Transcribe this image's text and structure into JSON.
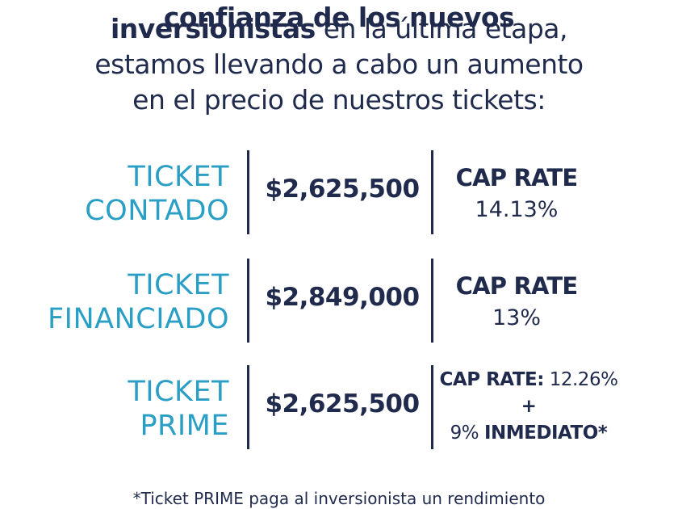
{
  "intro": {
    "line0_cut": "confianza de los nuevos",
    "line1_bold": "inversionistas",
    "line1_rest": " en la última etapa,",
    "line2": "estamos llevando a cabo un aumento",
    "line3": "en el precio de nuestros tickets:"
  },
  "tickets": [
    {
      "label_line1": "TICKET",
      "label_line2": "CONTADO",
      "price": "$2,625,500",
      "cap_title": "CAP RATE",
      "cap_value": "14.13%"
    },
    {
      "label_line1": "TICKET",
      "label_line2": "FINANCIADO",
      "price": "$2,849,000",
      "cap_title": "CAP RATE",
      "cap_value": "13%"
    },
    {
      "label_line1": "TICKET",
      "label_line2": "PRIME",
      "price": "$2,625,500",
      "cap_title": "CAP RATE:",
      "cap_value": " 12.26%",
      "cap_plus": "+",
      "cap_extra_pct": "9% ",
      "cap_extra_bold": "INMEDIATO*"
    }
  ],
  "footnote": "*Ticket PRIME paga al inversionista un rendimiento",
  "colors": {
    "navy": "#1f2a4d",
    "accent": "#2a9fc6"
  }
}
